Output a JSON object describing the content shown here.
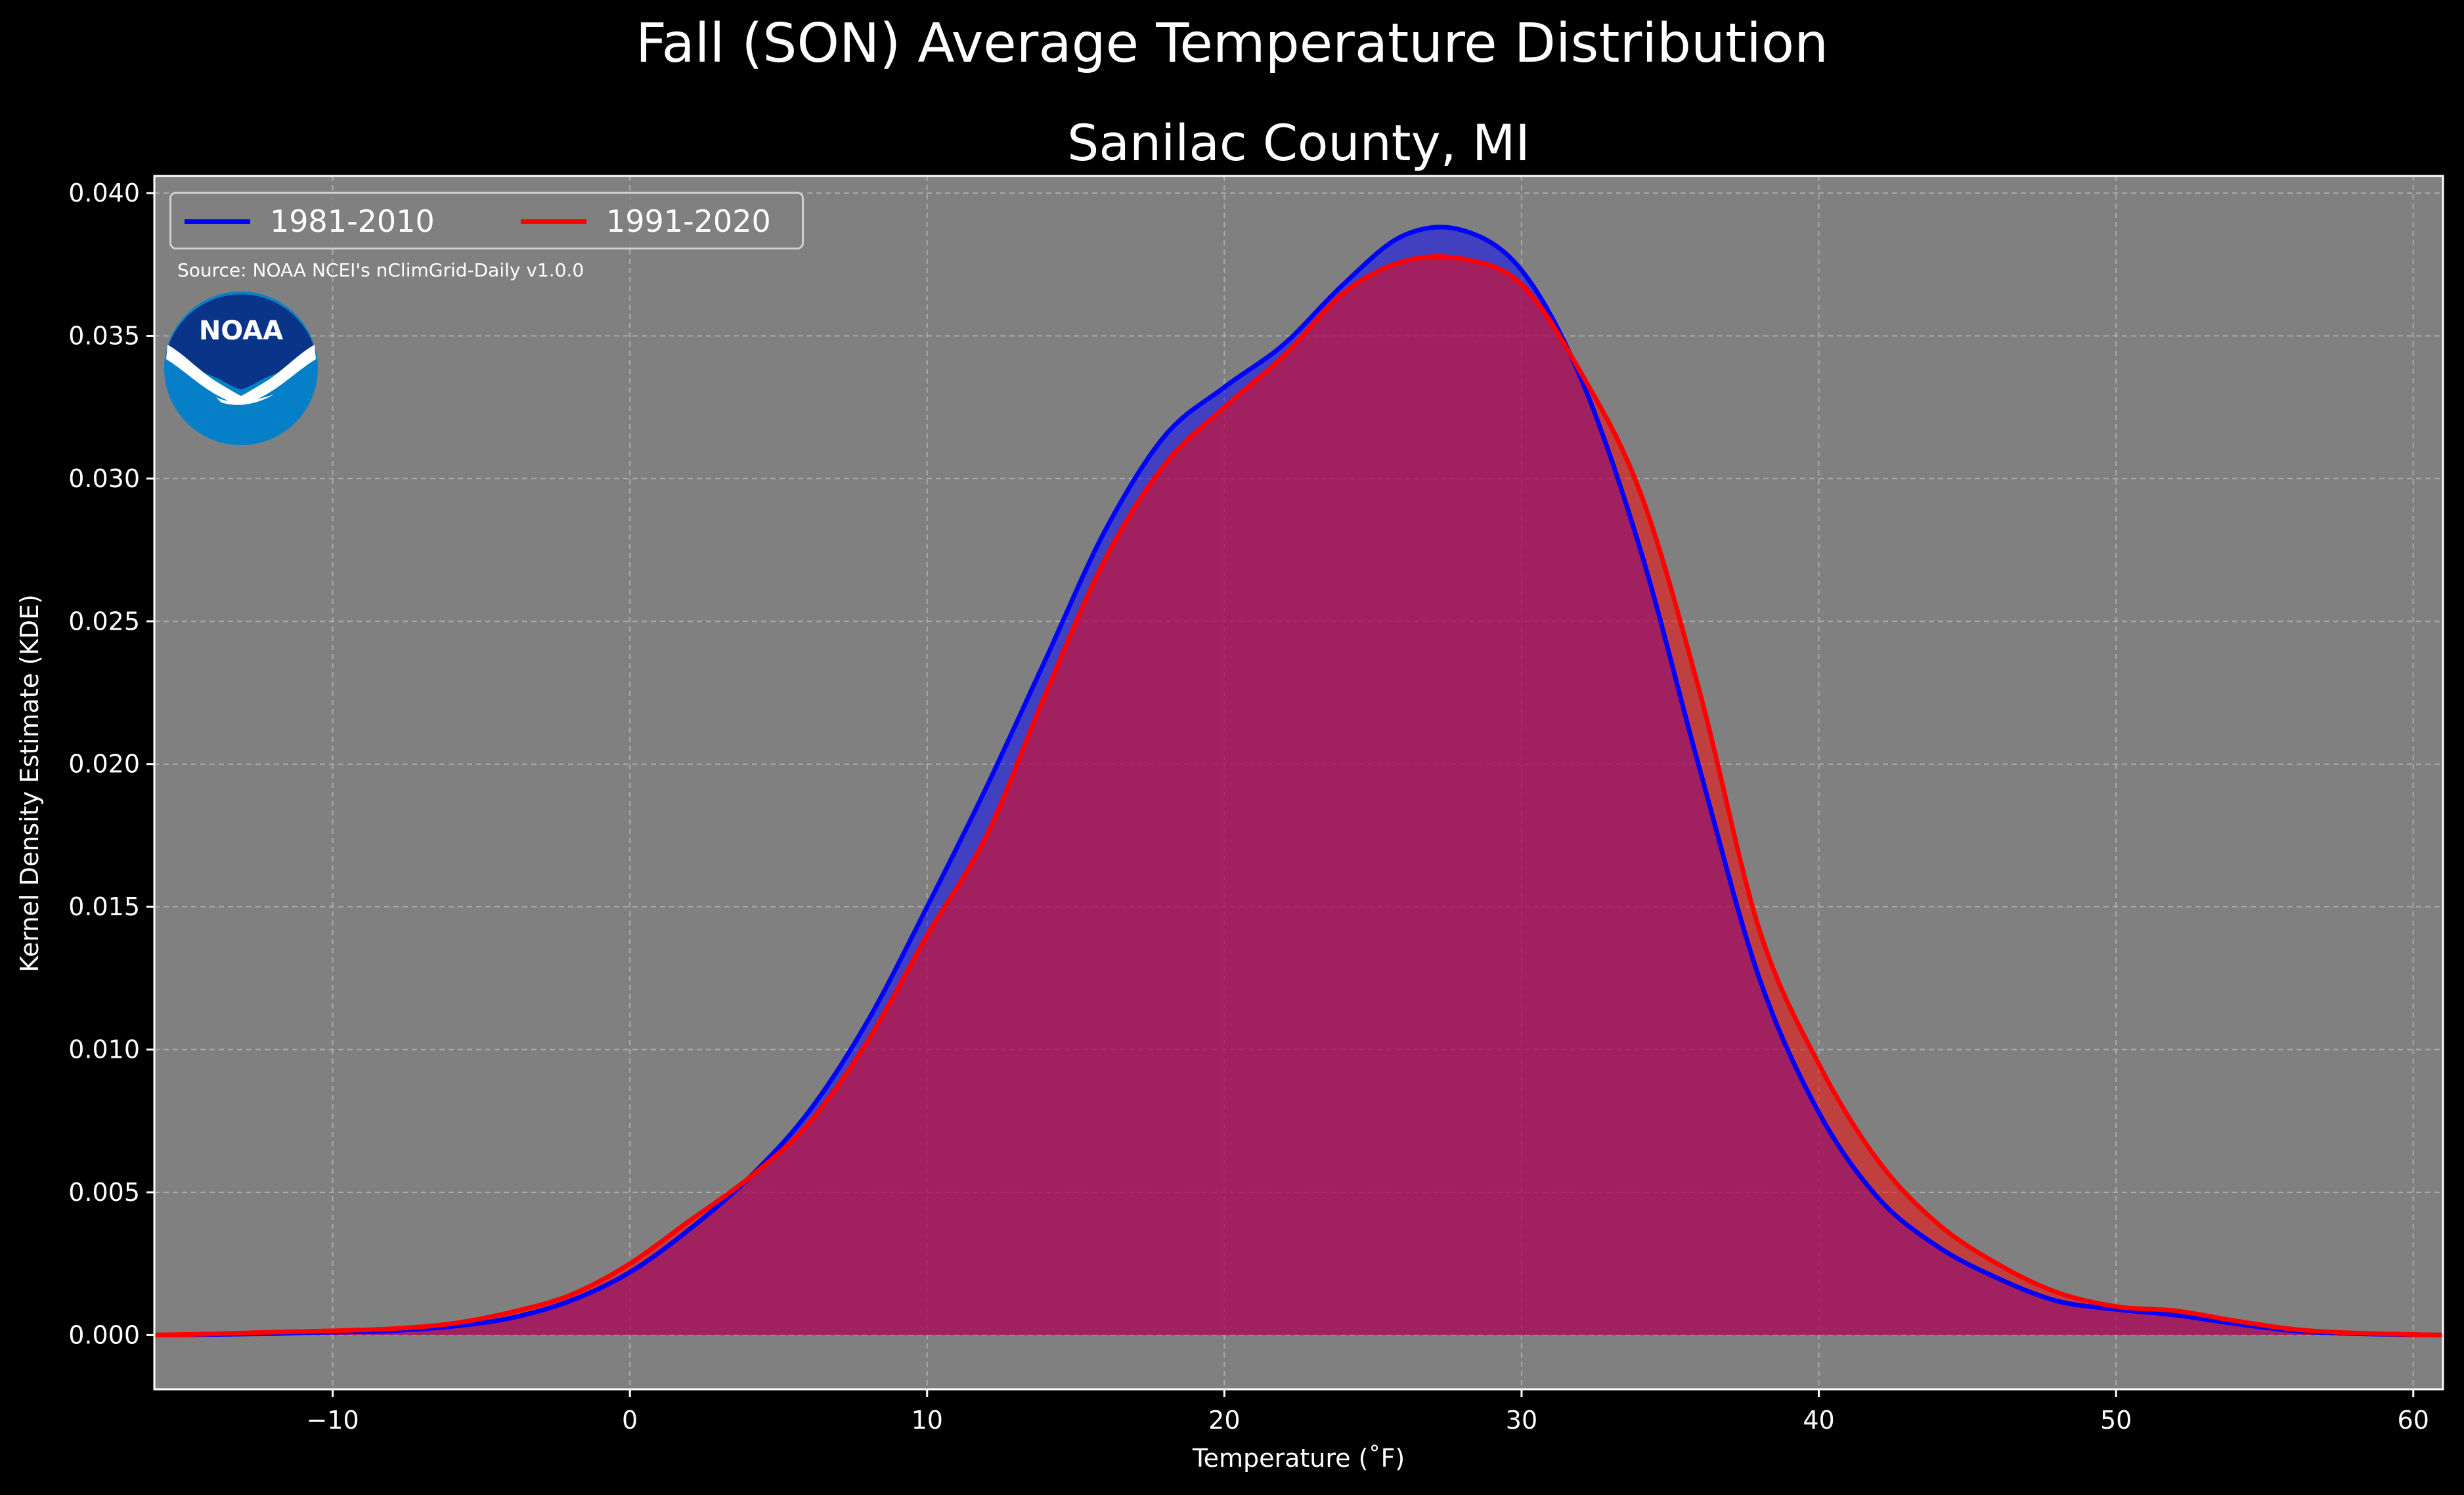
{
  "figure": {
    "title": "Fall (SON) Average Temperature Distribution",
    "source_note": "Source: NOAA NCEI's nClimGrid-Daily v1.0.0",
    "logo_text": "NOAA",
    "colors": {
      "background": "#000000",
      "plot_background": "#808080",
      "series_1981": "#0000ff",
      "series_1991": "#ff0000",
      "noaa_dark": "#0a3487",
      "noaa_light": "#0580c8"
    }
  },
  "chart_data": {
    "type": "area",
    "title": "Sanilac County, MI",
    "xlabel": "Temperature ($^\\circ$F)",
    "xlabel_display": "Temperature (˚F)",
    "ylabel": "Kernel Density Estimate (KDE)",
    "xlim": [
      -16,
      61
    ],
    "ylim": [
      -0.0019,
      0.0406
    ],
    "xticks": [
      -10,
      0,
      10,
      20,
      30,
      40,
      50,
      60
    ],
    "xtick_labels": [
      "−10",
      "0",
      "10",
      "20",
      "30",
      "40",
      "50",
      "60"
    ],
    "yticks": [
      0.0,
      0.005,
      0.01,
      0.015,
      0.02,
      0.025,
      0.03,
      0.035,
      0.04
    ],
    "ytick_labels": [
      "0.000",
      "0.005",
      "0.010",
      "0.015",
      "0.020",
      "0.025",
      "0.030",
      "0.035",
      "0.040"
    ],
    "grid": true,
    "legend_position": "top-left",
    "x": [
      -16,
      -14,
      -12,
      -10,
      -8,
      -6,
      -4,
      -2,
      0,
      2,
      4,
      6,
      8,
      10,
      12,
      14,
      16,
      18,
      20,
      22,
      24,
      26,
      28,
      30,
      32,
      34,
      36,
      38,
      40,
      42,
      44,
      46,
      48,
      50,
      52,
      54,
      56,
      58,
      61
    ],
    "series": [
      {
        "name": "1981-2010",
        "color": "#0000ff",
        "values": [
          0.0,
          2e-05,
          5e-05,
          0.0001,
          0.00015,
          0.0003,
          0.0006,
          0.0012,
          0.0022,
          0.0037,
          0.0055,
          0.0078,
          0.011,
          0.015,
          0.0192,
          0.0237,
          0.0282,
          0.0315,
          0.0332,
          0.0347,
          0.0368,
          0.0385,
          0.0387,
          0.0373,
          0.0335,
          0.0275,
          0.0198,
          0.0125,
          0.0078,
          0.0048,
          0.0031,
          0.002,
          0.0012,
          0.0009,
          0.0007,
          0.0004,
          0.00015,
          5e-05,
          0.0
        ]
      },
      {
        "name": "1991-2020",
        "color": "#ff0000",
        "values": [
          0.0,
          4e-05,
          0.0001,
          0.00015,
          0.00022,
          0.0004,
          0.0008,
          0.0014,
          0.0025,
          0.004,
          0.0055,
          0.0074,
          0.0103,
          0.014,
          0.0175,
          0.0225,
          0.0272,
          0.0305,
          0.0325,
          0.0343,
          0.0365,
          0.0376,
          0.0377,
          0.0368,
          0.0337,
          0.0295,
          0.0225,
          0.0142,
          0.0095,
          0.0061,
          0.0039,
          0.0025,
          0.0015,
          0.001,
          0.00085,
          0.0005,
          0.0002,
          7e-05,
          0.0
        ]
      }
    ]
  }
}
